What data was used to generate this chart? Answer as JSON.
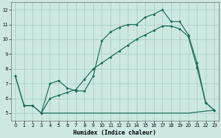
{
  "title": "",
  "xlabel": "Humidex (Indice chaleur)",
  "bg_color": "#cce8e0",
  "grid_color": "#aacccc",
  "line_color": "#1a6b5a",
  "marker_color": "#1a6b5a",
  "xlim": [
    -0.5,
    23.5
  ],
  "ylim": [
    4.5,
    12.5
  ],
  "xticks": [
    0,
    1,
    2,
    3,
    4,
    5,
    6,
    7,
    8,
    9,
    10,
    11,
    12,
    13,
    14,
    15,
    16,
    17,
    18,
    19,
    20,
    21,
    22,
    23
  ],
  "yticks": [
    5,
    6,
    7,
    8,
    9,
    10,
    11,
    12
  ],
  "line1_x": [
    0,
    1,
    2,
    3,
    4,
    5,
    6,
    7,
    8,
    9,
    10,
    11,
    12,
    13,
    14,
    15,
    16,
    17,
    18,
    19,
    20,
    21,
    22,
    23
  ],
  "line1_y": [
    7.5,
    5.5,
    5.5,
    5.0,
    7.0,
    7.2,
    6.7,
    6.5,
    6.5,
    7.5,
    9.9,
    10.5,
    10.8,
    11.0,
    11.0,
    11.5,
    11.7,
    12.0,
    11.2,
    11.2,
    10.3,
    8.4,
    5.7,
    5.2
  ],
  "line2_x": [
    0,
    1,
    2,
    3,
    4,
    5,
    6,
    7,
    8,
    9,
    10,
    11,
    12,
    13,
    14,
    15,
    16,
    17,
    18,
    19,
    20,
    21,
    22,
    23
  ],
  "line2_y": [
    7.5,
    5.5,
    5.5,
    5.0,
    6.0,
    6.2,
    6.4,
    6.6,
    7.3,
    8.0,
    8.4,
    8.8,
    9.2,
    9.6,
    10.0,
    10.3,
    10.6,
    10.9,
    10.9,
    10.7,
    10.2,
    8.1,
    5.7,
    5.2
  ],
  "line3_x": [
    3,
    20,
    23
  ],
  "line3_y": [
    5.0,
    5.0,
    5.2
  ],
  "xlabel_fontsize": 6.0,
  "tick_fontsize": 4.8
}
